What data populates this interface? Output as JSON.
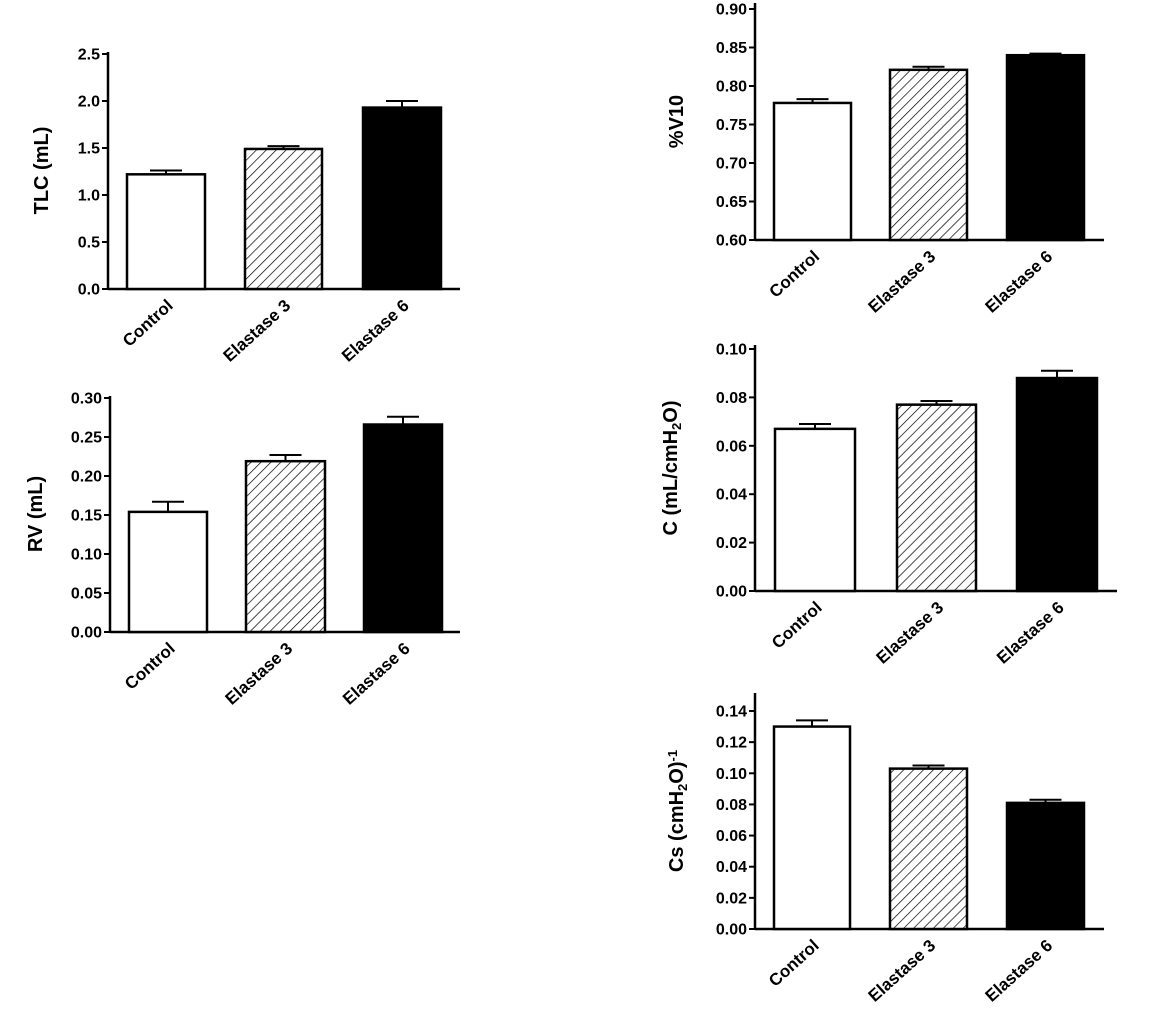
{
  "chart_data": [
    {
      "type": "bar",
      "id": "tlc",
      "ylabel_parts": [
        {
          "t": "TLC (mL)"
        }
      ],
      "categories": [
        "Control",
        "Elastase 3",
        "Elastase 6"
      ],
      "values": [
        1.22,
        1.49,
        1.93
      ],
      "errors": [
        0.04,
        0.03,
        0.07
      ],
      "ylim": [
        0,
        2.5
      ],
      "yticks": [
        0.0,
        0.5,
        1.0,
        1.5,
        2.0,
        2.5
      ],
      "ytick_labels": [
        "0.0",
        "0.5",
        "1.0",
        "1.5",
        "2.0",
        "2.5"
      ],
      "fills": [
        "white",
        "hatch",
        "black"
      ]
    },
    {
      "type": "bar",
      "id": "rv",
      "ylabel_parts": [
        {
          "t": "RV (mL)"
        }
      ],
      "categories": [
        "Control",
        "Elastase 3",
        "Elastase 6"
      ],
      "values": [
        0.154,
        0.219,
        0.266
      ],
      "errors": [
        0.013,
        0.008,
        0.01
      ],
      "ylim": [
        0,
        0.3
      ],
      "yticks": [
        0.0,
        0.05,
        0.1,
        0.15,
        0.2,
        0.25,
        0.3
      ],
      "ytick_labels": [
        "0.00",
        "0.05",
        "0.10",
        "0.15",
        "0.20",
        "0.25",
        "0.30"
      ],
      "fills": [
        "white",
        "hatch",
        "black"
      ]
    },
    {
      "type": "bar",
      "id": "v10",
      "ylabel_parts": [
        {
          "t": "%V10"
        }
      ],
      "categories": [
        "Control",
        "Elastase 3",
        "Elastase 6"
      ],
      "values": [
        0.778,
        0.821,
        0.84
      ],
      "errors": [
        0.005,
        0.004,
        0.002
      ],
      "ylim": [
        0.6,
        0.9
      ],
      "yticks": [
        0.6,
        0.65,
        0.7,
        0.75,
        0.8,
        0.85,
        0.9
      ],
      "ytick_labels": [
        "0.60",
        "0.65",
        "0.70",
        "0.75",
        "0.80",
        "0.85",
        "0.90"
      ],
      "fills": [
        "white",
        "hatch",
        "black"
      ]
    },
    {
      "type": "bar",
      "id": "c",
      "ylabel_parts": [
        {
          "t": "C (mL/cmH"
        },
        {
          "t": "2",
          "sub": true
        },
        {
          "t": "O)"
        }
      ],
      "categories": [
        "Control",
        "Elastase 3",
        "Elastase 6"
      ],
      "values": [
        0.067,
        0.077,
        0.088
      ],
      "errors": [
        0.002,
        0.0015,
        0.003
      ],
      "ylim": [
        0,
        0.1
      ],
      "yticks": [
        0.0,
        0.02,
        0.04,
        0.06,
        0.08,
        0.1
      ],
      "ytick_labels": [
        "0.00",
        "0.02",
        "0.04",
        "0.06",
        "0.08",
        "0.10"
      ],
      "fills": [
        "white",
        "hatch",
        "black"
      ]
    },
    {
      "type": "bar",
      "id": "cs",
      "ylabel_parts": [
        {
          "t": "Cs (cmH"
        },
        {
          "t": "2",
          "sub": true
        },
        {
          "t": "O)"
        },
        {
          "t": "-1",
          "sup": true
        }
      ],
      "categories": [
        "Control",
        "Elastase 3",
        "Elastase 6"
      ],
      "values": [
        0.13,
        0.103,
        0.081
      ],
      "errors": [
        0.004,
        0.002,
        0.002
      ],
      "ylim": [
        0,
        0.15
      ],
      "yticks": [
        0.0,
        0.02,
        0.04,
        0.06,
        0.08,
        0.1,
        0.12,
        0.14
      ],
      "ytick_labels": [
        "0.00",
        "0.02",
        "0.04",
        "0.06",
        "0.08",
        "0.10",
        "0.12",
        "0.14"
      ],
      "fills": [
        "white",
        "hatch",
        "black"
      ]
    }
  ]
}
